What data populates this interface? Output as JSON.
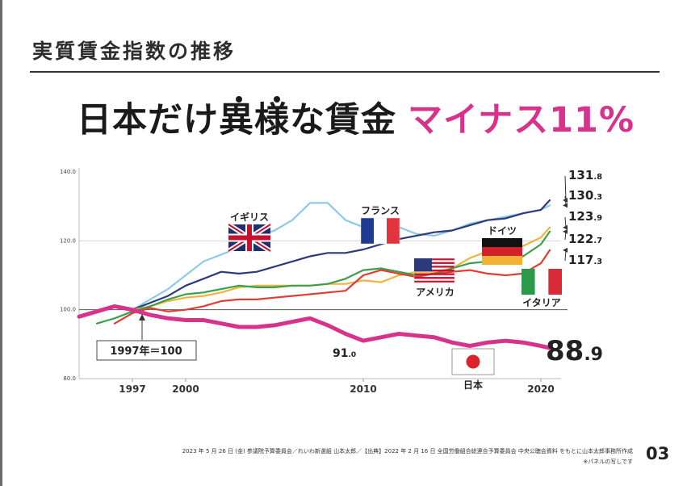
{
  "slide": {
    "title": "実質賃金指数の推移",
    "headline_main": "日本だけ異様な賃金",
    "headline_accent": "マイナス11%",
    "footnote_line1": "2023 年 5 月 26 日 (金) 参議院予算委員会／れいわ新選組 山本太郎／【出典】2022 年 2 月 16 日 全国労働組合総連合予算委員会 中央公聴会資料 をもとに山本太郎事務所作成",
    "footnote_line2": "※パネルの写しです",
    "page_number": "03"
  },
  "chart_data": {
    "type": "line",
    "ylim": [
      80,
      140
    ],
    "xlim": [
      1994,
      2021.5
    ],
    "yticks": [
      "80.0",
      "100.0",
      "120.0",
      "140.0"
    ],
    "xticks": [
      "1997",
      "2000",
      "2010",
      "2020"
    ],
    "reference_line": 100,
    "baseline_note": "1997年＝100",
    "series": [
      {
        "name": "イギリス",
        "color": "#8ccbe6",
        "label_color": "#222222",
        "x": [
          1997,
          1998,
          1999,
          2000,
          2001,
          2002,
          2003,
          2004,
          2005,
          2006,
          2007,
          2008,
          2009,
          2010,
          2011,
          2012,
          2013,
          2014,
          2015,
          2016,
          2017,
          2018,
          2019,
          2020,
          2020.5
        ],
        "values": [
          100,
          103,
          106,
          110,
          114,
          116,
          118,
          121,
          123,
          126,
          131,
          131,
          126,
          124,
          125,
          124,
          122,
          121.5,
          123,
          125,
          126,
          127,
          128,
          129,
          130.3
        ],
        "end_value": "130.3"
      },
      {
        "name": "フランス",
        "color": "#2e3a7a",
        "label_color": "#222222",
        "x": [
          1997,
          1998,
          1999,
          2000,
          2001,
          2002,
          2003,
          2004,
          2005,
          2006,
          2007,
          2008,
          2009,
          2010,
          2011,
          2012,
          2013,
          2014,
          2015,
          2016,
          2017,
          2018,
          2019,
          2020,
          2020.5
        ],
        "values": [
          100,
          102,
          104,
          107,
          109,
          111,
          110.5,
          111,
          112.5,
          114,
          115.5,
          116.5,
          116.5,
          117.5,
          119,
          120.5,
          121.5,
          122.5,
          123,
          124.5,
          126,
          126.5,
          128,
          129,
          131.8
        ],
        "end_value": "131.8"
      },
      {
        "name": "ドイツ",
        "color": "#f2b33d",
        "label_color": "#222222",
        "x": [
          1997,
          1998,
          1999,
          2000,
          2001,
          2002,
          2003,
          2004,
          2005,
          2006,
          2007,
          2008,
          2009,
          2010,
          2011,
          2012,
          2013,
          2014,
          2015,
          2016,
          2017,
          2018,
          2019,
          2020,
          2020.5
        ],
        "values": [
          100,
          101,
          102.5,
          103.5,
          104,
          105,
          106.5,
          107,
          107,
          107,
          107,
          107.5,
          107.5,
          108.5,
          108,
          110,
          111,
          111,
          112,
          115,
          117,
          118,
          118.5,
          121,
          123.9
        ],
        "end_value": "123.9"
      },
      {
        "name": "アメリカ",
        "color": "#3aa04a",
        "label_color": "#222222",
        "x": [
          1995,
          1996,
          1997,
          1998,
          1999,
          2000,
          2001,
          2002,
          2003,
          2004,
          2005,
          2006,
          2007,
          2008,
          2009,
          2010,
          2011,
          2012,
          2013,
          2014,
          2015,
          2016,
          2017,
          2018,
          2019,
          2020,
          2020.5
        ],
        "values": [
          96,
          97.5,
          99.5,
          101,
          103,
          104.5,
          105,
          106,
          107,
          106.5,
          106.5,
          107,
          107,
          107.5,
          109,
          111.5,
          112,
          111,
          110,
          110.5,
          112,
          113.5,
          114,
          114.5,
          115.5,
          119,
          122.7
        ],
        "end_value": "122.7"
      },
      {
        "name": "イタリア",
        "color": "#e03c32",
        "label_color": "#222222",
        "x": [
          1996,
          1997,
          1998,
          1999,
          2000,
          2001,
          2002,
          2003,
          2004,
          2005,
          2006,
          2007,
          2008,
          2009,
          2010,
          2011,
          2012,
          2013,
          2014,
          2015,
          2016,
          2017,
          2018,
          2019,
          2020,
          2020.5
        ],
        "values": [
          96,
          99,
          100.5,
          99.5,
          100,
          101,
          102.5,
          103,
          103,
          103.5,
          104,
          104.5,
          105,
          105.5,
          110,
          111.5,
          110.5,
          109.5,
          110.5,
          111,
          111.5,
          110.5,
          110,
          110.5,
          113.5,
          117.3
        ],
        "end_value": "117.3"
      },
      {
        "name": "日本",
        "color": "#d8338c",
        "label_color": "#222222",
        "x": [
          1994,
          1995,
          1996,
          1997,
          1998,
          1999,
          2000,
          2001,
          2002,
          2003,
          2004,
          2005,
          2006,
          2007,
          2008,
          2009,
          2010,
          2011,
          2012,
          2013,
          2014,
          2015,
          2016,
          2017,
          2018,
          2019,
          2020,
          2020.5
        ],
        "values": [
          98,
          99.5,
          101,
          100,
          98.5,
          97.5,
          97,
          97,
          96,
          95,
          95,
          95.5,
          96.5,
          97.5,
          95.5,
          93,
          91,
          92,
          93,
          92.5,
          92,
          90.5,
          89.5,
          90.5,
          91,
          90.5,
          89.5,
          88.9
        ],
        "end_value": "88.9",
        "mid_value": "91.0"
      }
    ]
  }
}
